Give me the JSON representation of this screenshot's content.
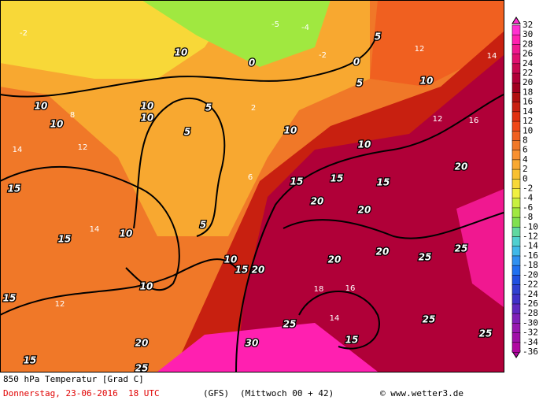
{
  "map": {
    "labels": [
      "10",
      "10",
      "10",
      "10",
      "10",
      "5",
      "5",
      "5",
      "5",
      "5",
      "0",
      "0",
      "10",
      "10",
      "10",
      "10",
      "10",
      "10",
      "15",
      "15",
      "15",
      "15",
      "15",
      "15",
      "15",
      "15",
      "15",
      "20",
      "20",
      "20",
      "20",
      "20",
      "20",
      "20",
      "25",
      "25",
      "25",
      "25",
      "25",
      "25",
      "30",
      "14",
      "12",
      "14",
      "12",
      "8",
      "6",
      "18",
      "16",
      "14",
      "12",
      "16",
      "14",
      "12",
      "2",
      "-2",
      "-4",
      "-5",
      "-2"
    ],
    "colorbar": {
      "ticks": [
        32,
        30,
        28,
        26,
        24,
        22,
        20,
        18,
        16,
        14,
        12,
        10,
        8,
        6,
        4,
        2,
        0,
        -2,
        -4,
        -6,
        -8,
        -10,
        -12,
        -14,
        -16,
        -18,
        -20,
        -22,
        -24,
        -26,
        -28,
        -30,
        -32,
        -34,
        -36
      ],
      "colors": [
        "#ff30d0",
        "#ff20b0",
        "#f01890",
        "#e01070",
        "#c80850",
        "#b00038",
        "#a00020",
        "#b01010",
        "#c82010",
        "#e03010",
        "#f04818",
        "#f06020",
        "#f07828",
        "#f89030",
        "#f8a830",
        "#f8c030",
        "#f8d838",
        "#f0f040",
        "#c8f040",
        "#a0e840",
        "#80e050",
        "#60d8a0",
        "#50d0d0",
        "#40b8e8",
        "#3090f0",
        "#2070f0",
        "#2050e0",
        "#3040d0",
        "#4030c8",
        "#6028c0",
        "#8020b8",
        "#9818b0",
        "#a010a8",
        "#b008a0"
      ]
    }
  },
  "footer": {
    "title": "850 hPa Temperatur [Grad C]",
    "date": "Donnerstag, 23-06-2016  18 UTC",
    "model": "(GFS)",
    "run": "(Mittwoch 00 + 42)",
    "credit": "© www.wetter3.de"
  }
}
